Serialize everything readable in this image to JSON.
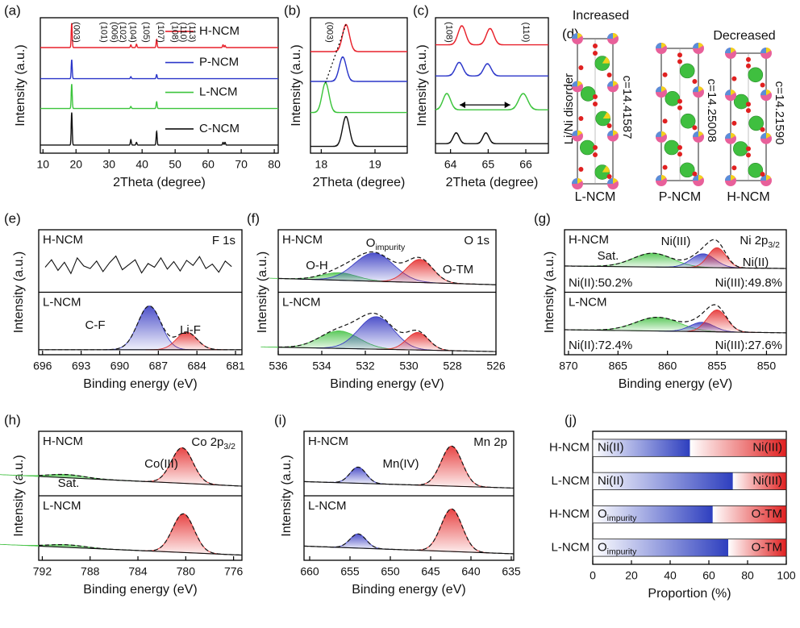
{
  "chart_data": [
    {
      "type": "spectrum",
      "panel": "(a)",
      "xlabel": "2Theta (degree)",
      "ylabel": "Intensity (a.u.)",
      "xlim": [
        9.2,
        81.2
      ],
      "xticks": [
        10,
        20,
        30,
        40,
        50,
        60,
        70,
        80
      ],
      "ylim": [
        0,
        100
      ],
      "series": [
        {
          "name": "H-NCM",
          "color": "#e8212b",
          "baseline": 78,
          "peaks": [
            {
              "center": 18.7,
              "height": 18,
              "width": 0.15
            },
            {
              "center": 36.6,
              "height": 2,
              "width": 0.15
            },
            {
              "center": 38.3,
              "height": 2.5,
              "width": 0.15
            },
            {
              "center": 44.4,
              "height": 6,
              "width": 0.15
            },
            {
              "center": 64.5,
              "height": 2,
              "width": 0.15
            },
            {
              "center": 65.1,
              "height": 1.5,
              "width": 0.15
            }
          ]
        },
        {
          "name": "P-NCM",
          "color": "#2b36c9",
          "baseline": 55,
          "peaks": [
            {
              "center": 18.7,
              "height": 14,
              "width": 0.15
            },
            {
              "center": 36.6,
              "height": 1.5,
              "width": 0.15
            },
            {
              "center": 44.4,
              "height": 3,
              "width": 0.15
            }
          ]
        },
        {
          "name": "L-NCM",
          "color": "#3cc43c",
          "baseline": 33,
          "peaks": [
            {
              "center": 18.7,
              "height": 18,
              "width": 0.15
            },
            {
              "center": 36.6,
              "height": 1.5,
              "width": 0.15
            },
            {
              "center": 44.4,
              "height": 5,
              "width": 0.15
            }
          ]
        },
        {
          "name": "C-NCM",
          "color": "#111111",
          "baseline": 6,
          "peaks": [
            {
              "center": 18.7,
              "height": 24,
              "width": 0.15
            },
            {
              "center": 36.6,
              "height": 4,
              "width": 0.15
            },
            {
              "center": 38.3,
              "height": 2,
              "width": 0.15
            },
            {
              "center": 44.4,
              "height": 10,
              "width": 0.15
            },
            {
              "center": 64.5,
              "height": 2,
              "width": 0.15
            },
            {
              "center": 65.1,
              "height": 2,
              "width": 0.15
            }
          ]
        }
      ],
      "peak_labels": [
        {
          "text": "(003)",
          "x": 20.0
        },
        {
          "text": "(101)",
          "x": 28.3
        },
        {
          "text": "(006)",
          "x": 31.5
        },
        {
          "text": "(102)",
          "x": 34.1
        },
        {
          "text": "(104)",
          "x": 37.1
        },
        {
          "text": "(105)",
          "x": 41.2
        },
        {
          "text": "(107)",
          "x": 45.6
        },
        {
          "text": "(108)",
          "x": 49.8
        },
        {
          "text": "(110)",
          "x": 52.4
        },
        {
          "text": "(113)",
          "x": 55.1
        }
      ]
    },
    {
      "type": "spectrum",
      "panel": "(b)",
      "xlabel": "2Theta (degree)",
      "ylabel": "Intensity (a.u.)",
      "xlim": [
        17.8,
        19.6
      ],
      "xticks": [
        18,
        19
      ],
      "ylim": [
        0,
        100
      ],
      "series": [
        {
          "color": "#e8212b",
          "baseline": 75,
          "peaks": [
            {
              "center": 18.46,
              "height": 20,
              "width": 0.065
            }
          ]
        },
        {
          "color": "#2b36c9",
          "baseline": 53,
          "peaks": [
            {
              "center": 18.4,
              "height": 18,
              "width": 0.065
            }
          ]
        },
        {
          "color": "#3cc43c",
          "baseline": 30,
          "peaks": [
            {
              "center": 18.08,
              "height": 22,
              "width": 0.065
            }
          ]
        },
        {
          "color": "#111111",
          "baseline": 5,
          "peaks": [
            {
              "center": 18.46,
              "height": 22,
              "width": 0.065
            }
          ]
        }
      ],
      "peak_labels": [
        {
          "text": "(003)",
          "x": 18.15
        }
      ]
    },
    {
      "type": "spectrum",
      "panel": "(c)",
      "xlabel": "2Theta (degree)",
      "ylabel": "Intensity (a.u.)",
      "xlim": [
        63.6,
        66.6
      ],
      "xticks": [
        64,
        65,
        66
      ],
      "ylim": [
        0,
        100
      ],
      "series": [
        {
          "color": "#e8212b",
          "baseline": 80,
          "peaks": [
            {
              "center": 64.3,
              "height": 14,
              "width": 0.1
            },
            {
              "center": 65.05,
              "height": 12,
              "width": 0.1
            }
          ]
        },
        {
          "color": "#2b36c9",
          "baseline": 57,
          "peaks": [
            {
              "center": 64.23,
              "height": 10,
              "width": 0.1
            },
            {
              "center": 64.98,
              "height": 9,
              "width": 0.1
            }
          ]
        },
        {
          "color": "#3cc43c",
          "baseline": 32,
          "peaks": [
            {
              "center": 63.9,
              "height": 12,
              "width": 0.1
            },
            {
              "center": 65.93,
              "height": 12,
              "width": 0.12
            }
          ]
        },
        {
          "color": "#111111",
          "baseline": 7,
          "peaks": [
            {
              "center": 64.15,
              "height": 8,
              "width": 0.08
            },
            {
              "center": 64.94,
              "height": 8,
              "width": 0.08
            }
          ]
        }
      ],
      "peak_labels": [
        {
          "text": "(108)",
          "x": 63.95
        },
        {
          "text": "(110)",
          "x": 66.0
        }
      ]
    },
    {
      "type": "schematic",
      "panel": "(d)",
      "increase_label": "Increased",
      "decrease_label": "Decreased",
      "side_label": "Li/Ni disorder",
      "structures": [
        {
          "name": "L-NCM",
          "lattice": "c=14.41587"
        },
        {
          "name": "P-NCM",
          "lattice": "c=14.25008"
        },
        {
          "name": "H-NCM",
          "lattice": "c=14.21590"
        }
      ]
    },
    {
      "type": "xps",
      "panel": "(e)",
      "xlabel": "Binding energy (eV)",
      "ylabel": "Intensity (a.u.)",
      "element_label": "F 1s",
      "xlim": [
        696.3,
        680.5
      ],
      "xticks": [
        696,
        693,
        690,
        687,
        684,
        681
      ],
      "ylim": [
        0,
        100
      ],
      "subplots": [
        {
          "name": "H-NCM",
          "data": {
            "x": [
              695.8,
              695.3,
              694.8,
              694.3,
              693.8,
              693.3,
              692.8,
              692.3,
              691.8,
              691.3,
              690.8,
              690.3,
              689.8,
              689.3,
              688.8,
              688.3,
              687.8,
              687.3,
              686.8,
              686.3,
              685.8,
              685.3,
              684.8,
              684.3,
              683.8,
              683.3,
              682.8,
              682.3,
              681.8,
              681.3
            ],
            "values": [
              40,
              52,
              35,
              48,
              30,
              55,
              42,
              38,
              50,
              33,
              47,
              58,
              36,
              44,
              52,
              31,
              46,
              40,
              55,
              37,
              49,
              34,
              51,
              43,
              57,
              38,
              45,
              32,
              50,
              41
            ]
          }
        },
        {
          "name": "L-NCM",
          "background": [
            8,
            8
          ],
          "components": [
            {
              "name": "C-F",
              "color": "#3b3fc4",
              "center": 687.7,
              "height": 70,
              "width": 0.9
            },
            {
              "name": "Li-F",
              "color": "#e53030",
              "center": 684.8,
              "height": 28,
              "width": 0.8
            }
          ]
        }
      ]
    },
    {
      "type": "xps",
      "panel": "(f)",
      "xlabel": "Binding energy (eV)",
      "ylabel": "Intensity (a.u.)",
      "element_label": "O 1s",
      "xlim": [
        536,
        526
      ],
      "xticks": [
        536,
        534,
        532,
        530,
        528,
        526
      ],
      "ylim": [
        0,
        100
      ],
      "subplots": [
        {
          "name": "H-NCM",
          "background": [
            22,
            12
          ],
          "components": [
            {
              "name": "O-H",
              "color": "#4cc44c",
              "center": 533.2,
              "height": 12,
              "width": 0.8
            },
            {
              "name": "O",
              "name_sub": "impurity",
              "color": "#3b3fc4",
              "center": 531.6,
              "height": 45,
              "width": 0.9
            },
            {
              "name": "O-TM",
              "color": "#e53030",
              "center": 529.5,
              "height": 37,
              "width": 0.6
            }
          ]
        },
        {
          "name": "L-NCM",
          "background": [
            12,
            5
          ],
          "components": [
            {
              "color": "#4cc44c",
              "center": 533.2,
              "height": 28,
              "width": 0.9
            },
            {
              "color": "#3b3fc4",
              "center": 531.5,
              "height": 52,
              "width": 0.8
            },
            {
              "color": "#e53030",
              "center": 529.6,
              "height": 28,
              "width": 0.5
            }
          ]
        }
      ]
    },
    {
      "type": "xps",
      "panel": "(g)",
      "xlabel": "Binding energy (eV)",
      "ylabel": "Intensity (a.u.)",
      "element_label": "Ni 2p",
      "element_label_sub": "3/2",
      "xlim": [
        870.4,
        848
      ],
      "xticks": [
        870,
        865,
        860,
        855,
        850
      ],
      "ylim": [
        0,
        100
      ],
      "subplots": [
        {
          "name": "H-NCM",
          "background": [
            42,
            38
          ],
          "components": [
            {
              "name": "Sat.",
              "color": "#4cc44c",
              "center": 861.5,
              "height": 22,
              "width": 2
            },
            {
              "name": "Ni(III)",
              "color": "#3b3fc4",
              "center": 856.4,
              "height": 22,
              "width": 1.2
            },
            {
              "name": "Ni(II)",
              "color": "#e53030",
              "center": 855,
              "height": 32,
              "width": 0.9
            }
          ],
          "notes": [
            {
              "text": "Ni(II):50.2%",
              "color": "#e53030"
            },
            {
              "text": "Ni(III):49.8%",
              "color": "#3b3fc4"
            }
          ]
        },
        {
          "name": "L-NCM",
          "background": [
            40,
            35
          ],
          "components": [
            {
              "color": "#4cc44c",
              "center": 861,
              "height": 22,
              "width": 2.2
            },
            {
              "color": "#3b3fc4",
              "center": 856.5,
              "height": 15,
              "width": 1.2
            },
            {
              "color": "#e53030",
              "center": 855,
              "height": 35,
              "width": 1
            }
          ],
          "notes": [
            {
              "text": "Ni(II):72.4%",
              "color": "#e53030"
            },
            {
              "text": "Ni(III):27.6%",
              "color": "#3b3fc4"
            }
          ]
        }
      ]
    },
    {
      "type": "xps",
      "panel": "(h)",
      "xlabel": "Binding energy (eV)",
      "ylabel": "Intensity (a.u.)",
      "element_label": "Co 2p",
      "element_label_sub": "3/2",
      "xlim": [
        792.3,
        775.3
      ],
      "xticks": [
        792,
        788,
        784,
        780,
        776
      ],
      "ylim": [
        0,
        100
      ],
      "subplots": [
        {
          "name": "H-NCM",
          "background": [
            30,
            15
          ],
          "components": [
            {
              "name": "Sat.",
              "color": "#4cc44c",
              "center": 790,
              "height": 5,
              "width": 1.5
            },
            {
              "name": "Co(III)",
              "color": "#e53030",
              "center": 780.3,
              "height": 55,
              "width": 0.9
            }
          ]
        },
        {
          "name": "L-NCM",
          "background": [
            22,
            8
          ],
          "components": [
            {
              "color": "#4cc44c",
              "center": 790,
              "height": 4,
              "width": 1.5
            },
            {
              "color": "#e53030",
              "center": 780.2,
              "height": 60,
              "width": 0.9
            }
          ]
        }
      ]
    },
    {
      "type": "xps",
      "panel": "(i)",
      "xlabel": "Binding energy (eV)",
      "ylabel": "Intensity (a.u.)",
      "element_label": "Mn 2p",
      "xlim": [
        660.7,
        634.7
      ],
      "xticks": [
        660,
        655,
        650,
        645,
        640,
        635
      ],
      "ylim": [
        0,
        100
      ],
      "subplots": [
        {
          "name": "H-NCM",
          "background": [
            22,
            12
          ],
          "components": [
            {
              "color": "#3b3fc4",
              "center": 654,
              "height": 25,
              "width": 1
            },
            {
              "name": "Mn(IV)",
              "color": "#e53030",
              "center": 642.4,
              "height": 62,
              "width": 1.3
            }
          ]
        },
        {
          "name": "L-NCM",
          "background": [
            22,
            10
          ],
          "components": [
            {
              "color": "#3b3fc4",
              "center": 654,
              "height": 22,
              "width": 1
            },
            {
              "color": "#e53030",
              "center": 642.4,
              "height": 66,
              "width": 1.3
            }
          ]
        }
      ]
    },
    {
      "type": "hbar",
      "panel": "(j)",
      "xlabel": "Proportion (%)",
      "xlim": [
        0,
        100
      ],
      "xticks": [
        0,
        20,
        40,
        60,
        80,
        100
      ],
      "categories": [
        "H-NCM",
        "L-NCM",
        "H-NCM",
        "L-NCM"
      ],
      "series": [
        {
          "name": "Ni(II)",
          "color": "#2e3fbf",
          "values": [
            50.2,
            72.4,
            null,
            null
          ]
        },
        {
          "name": "Ni(III)",
          "color": "#e02020",
          "values": [
            49.8,
            27.6,
            null,
            null
          ]
        },
        {
          "name": "O",
          "name_sub": "impurity",
          "color": "#2e3fbf",
          "values": [
            null,
            null,
            62,
            70
          ]
        },
        {
          "name": "O-TM",
          "color": "#e02020",
          "values": [
            null,
            null,
            38,
            30
          ]
        }
      ]
    }
  ]
}
